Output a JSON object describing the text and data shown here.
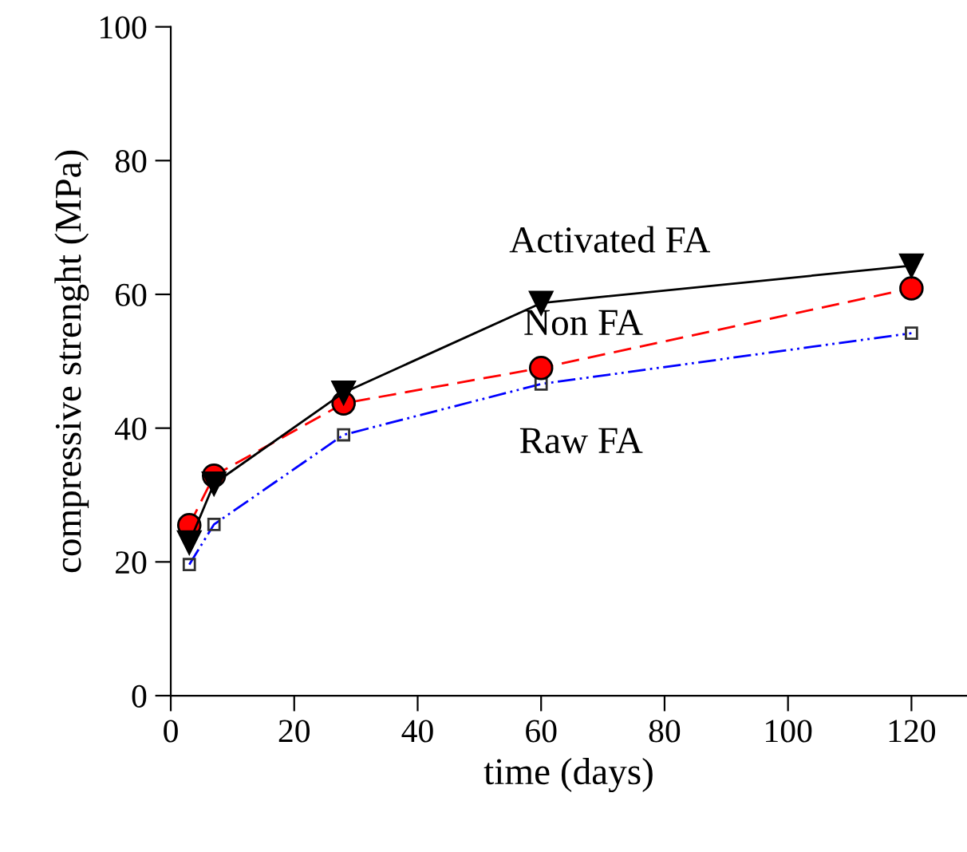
{
  "chart_data": {
    "type": "line",
    "xlabel": "time (days)",
    "ylabel": "compressive strenght (MPa)",
    "x": [
      3,
      7,
      28,
      60,
      120
    ],
    "series": [
      {
        "name": "Activated FA",
        "color": "#000000",
        "marker": "triangle",
        "line_style": "solid",
        "values": [
          22.9,
          31.7,
          45.3,
          58.7,
          64.3
        ]
      },
      {
        "name": "Non FA",
        "color": "#ff0000",
        "marker": "circle",
        "line_style": "dashed",
        "values": [
          25.5,
          32.9,
          43.7,
          49.0,
          60.9
        ]
      },
      {
        "name": "Raw FA",
        "color": "#0000ff",
        "marker": "square",
        "line_style": "dashdotdot",
        "values": [
          19.6,
          25.6,
          39.0,
          46.6,
          54.2
        ]
      }
    ],
    "xlim": [
      0,
      129
    ],
    "xticks": [
      0,
      20,
      40,
      60,
      80,
      100,
      120
    ],
    "ylim": [
      0,
      100
    ],
    "yticks": [
      0,
      20,
      40,
      60,
      80,
      100
    ],
    "grid": false,
    "legend": false
  }
}
